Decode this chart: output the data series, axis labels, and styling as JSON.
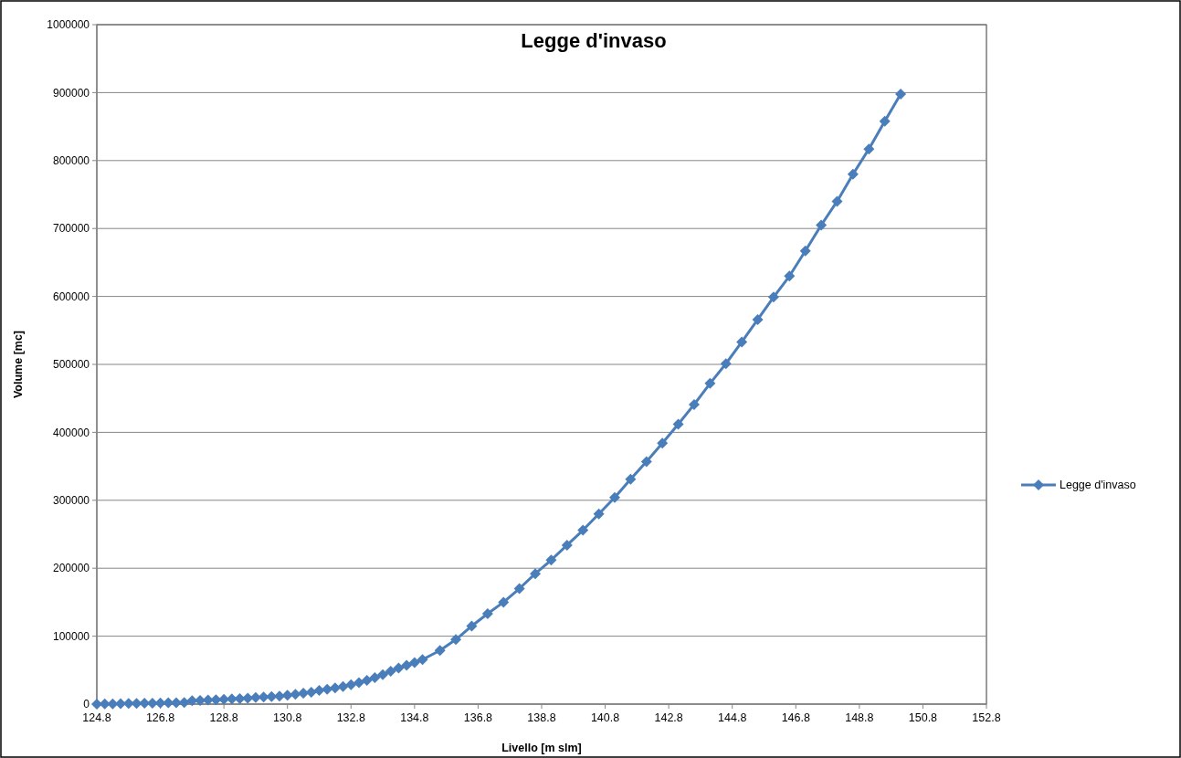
{
  "chart_data": {
    "type": "line",
    "title": "Legge d'invaso",
    "xlabel": "Livello [m slm]",
    "ylabel": "Volume  [mc]",
    "x": [
      124.8,
      125.05,
      125.3,
      125.55,
      125.8,
      126.05,
      126.3,
      126.55,
      126.8,
      127.05,
      127.3,
      127.55,
      127.8,
      128.05,
      128.3,
      128.55,
      128.8,
      129.05,
      129.3,
      129.55,
      129.8,
      130.05,
      130.3,
      130.55,
      130.8,
      131.05,
      131.3,
      131.55,
      131.8,
      132.05,
      132.3,
      132.55,
      132.8,
      133.05,
      133.3,
      133.55,
      133.8,
      134.05,
      134.3,
      134.55,
      134.8,
      135.05,
      135.6,
      136.1,
      136.6,
      137.1,
      137.6,
      138.1,
      138.6,
      139.1,
      139.6,
      140.1,
      140.6,
      141.1,
      141.6,
      142.1,
      142.6,
      143.1,
      143.6,
      144.1,
      144.6,
      145.1,
      145.6,
      146.1,
      146.6,
      147.1,
      147.6,
      148.1,
      148.6,
      149.1,
      149.6,
      150.1
    ],
    "series": [
      {
        "name": "Legge d'invaso",
        "color": "#4a7ebb",
        "values": [
          0,
          300,
          500,
          700,
          900,
          1100,
          1300,
          1500,
          1700,
          1900,
          2100,
          2300,
          5000,
          5500,
          6000,
          6500,
          7000,
          7600,
          8200,
          8900,
          9600,
          10300,
          11000,
          11800,
          13000,
          14500,
          16000,
          17500,
          20000,
          22000,
          24000,
          26000,
          28500,
          31500,
          35000,
          39000,
          43500,
          48500,
          53000,
          57000,
          61000,
          65500,
          79000,
          95000,
          115000,
          133000,
          150000,
          170000,
          192000,
          212000,
          234000,
          256000,
          280000,
          304000,
          331000,
          357000,
          384000,
          412000,
          441000,
          472000,
          501000,
          533000,
          566000,
          599000,
          630000,
          667000,
          705000,
          740000,
          780000,
          817000,
          858000,
          898000
        ]
      }
    ],
    "xlim": [
      124.8,
      152.8
    ],
    "xticks": [
      124.8,
      126.8,
      128.8,
      130.8,
      132.8,
      134.8,
      136.8,
      138.8,
      140.8,
      142.8,
      144.8,
      146.8,
      148.8,
      150.8,
      152.8
    ],
    "ylim": [
      0,
      1000000
    ],
    "yticks": [
      0,
      100000,
      200000,
      300000,
      400000,
      500000,
      600000,
      700000,
      800000,
      900000,
      1000000
    ],
    "grid": "y",
    "legend": "right",
    "marker": "diamond",
    "line_style": "solid"
  }
}
